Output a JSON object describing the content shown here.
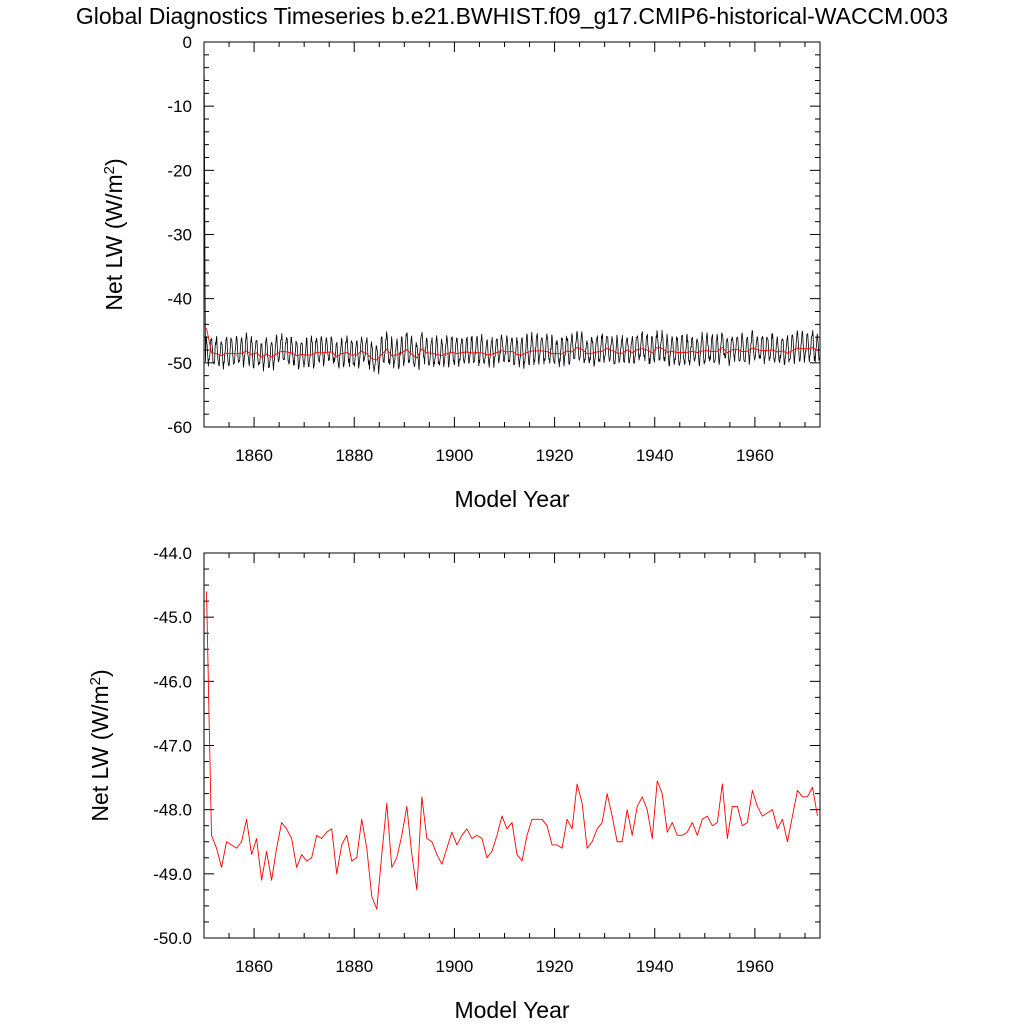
{
  "page": {
    "title": "Global Diagnostics Timeseries b.e21.BWHIST.f09_g17.CMIP6-historical-WACCM.003"
  },
  "colors": {
    "monthly_line": "#000000",
    "annual_line": "#ff0000",
    "axis": "#000000"
  },
  "chart_data": [
    {
      "type": "line",
      "name": "top-panel",
      "xlabel": "Model Year",
      "ylabel_main": "Net LW (W/m",
      "ylabel_sup": "2",
      "ylabel_close": ")",
      "xlim": [
        1850,
        1973
      ],
      "ylim": [
        -60,
        0
      ],
      "xticks": [
        1860,
        1880,
        1900,
        1920,
        1940,
        1960
      ],
      "xticklabels": [
        "1860",
        "1880",
        "1900",
        "1920",
        "1940",
        "1960"
      ],
      "yticks": [
        0,
        -10,
        -20,
        -30,
        -40,
        -50,
        -60
      ],
      "yticklabels": [
        "0",
        "-10",
        "-20",
        "-30",
        "-40",
        "-50",
        "-60"
      ],
      "series": [
        {
          "name": "monthly",
          "color": "#000000",
          "start_year": 1850.04,
          "step": 0.0833333,
          "first_values": [
            -5.0,
            -22.0,
            -38.0,
            -49.8
          ],
          "seasonal_pattern": [
            -49.6,
            -49.0,
            -48.2,
            -47.2,
            -46.5,
            -46.0,
            -46.2,
            -47.0,
            -48.3,
            -49.4,
            -50.0,
            -49.9
          ],
          "note_values": "first months spin up from ~0 W/m2, then seasonal cycle around the annual mean with amplitude about 4 W/m2"
        },
        {
          "name": "annual",
          "color": "#ff0000",
          "x": [
            1850.5,
            1851.5,
            1852.5,
            1853.5,
            1854.5,
            1855.5,
            1856.5,
            1857.5,
            1858.5,
            1859.5,
            1860.5,
            1861.5,
            1862.5,
            1863.5,
            1864.5,
            1865.5,
            1866.5,
            1867.5,
            1868.5,
            1869.5,
            1870.5,
            1871.5,
            1872.5,
            1873.5,
            1874.5,
            1875.5,
            1876.5,
            1877.5,
            1878.5,
            1879.5,
            1880.5,
            1881.5,
            1882.5,
            1883.5,
            1884.5,
            1885.5,
            1886.5,
            1887.5,
            1888.5,
            1889.5,
            1890.5,
            1891.5,
            1892.5,
            1893.5,
            1894.5,
            1895.5,
            1896.5,
            1897.5,
            1898.5,
            1899.5,
            1900.5,
            1901.5,
            1902.5,
            1903.5,
            1904.5,
            1905.5,
            1906.5,
            1907.5,
            1908.5,
            1909.5,
            1910.5,
            1911.5,
            1912.5,
            1913.5,
            1914.5,
            1915.5,
            1916.5,
            1917.5,
            1918.5,
            1919.5,
            1920.5,
            1921.5,
            1922.5,
            1923.5,
            1924.5,
            1925.5,
            1926.5,
            1927.5,
            1928.5,
            1929.5,
            1930.5,
            1931.5,
            1932.5,
            1933.5,
            1934.5,
            1935.5,
            1936.5,
            1937.5,
            1938.5,
            1939.5,
            1940.5,
            1941.5,
            1942.5,
            1943.5,
            1944.5,
            1945.5,
            1946.5,
            1947.5,
            1948.5,
            1949.5,
            1950.5,
            1951.5,
            1952.5,
            1953.5,
            1954.5,
            1955.5,
            1956.5,
            1957.5,
            1958.5,
            1959.5,
            1960.5,
            1961.5,
            1962.5,
            1963.5,
            1964.5,
            1965.5,
            1966.5,
            1967.5,
            1968.5,
            1969.5,
            1970.5,
            1971.5,
            1972.5
          ],
          "values": [
            -44.6,
            -48.4,
            -48.6,
            -48.9,
            -48.5,
            -48.55,
            -48.6,
            -48.5,
            -48.15,
            -48.7,
            -48.45,
            -49.1,
            -48.65,
            -49.1,
            -48.6,
            -48.2,
            -48.3,
            -48.45,
            -48.9,
            -48.7,
            -48.8,
            -48.75,
            -48.4,
            -48.45,
            -48.35,
            -48.3,
            -49.0,
            -48.55,
            -48.4,
            -48.8,
            -48.75,
            -48.15,
            -48.6,
            -49.35,
            -49.55,
            -48.7,
            -47.9,
            -48.9,
            -48.75,
            -48.4,
            -47.95,
            -48.7,
            -49.25,
            -47.8,
            -48.45,
            -48.5,
            -48.7,
            -48.85,
            -48.6,
            -48.35,
            -48.55,
            -48.4,
            -48.3,
            -48.45,
            -48.4,
            -48.45,
            -48.75,
            -48.65,
            -48.4,
            -48.1,
            -48.3,
            -48.2,
            -48.7,
            -48.8,
            -48.4,
            -48.15,
            -48.15,
            -48.15,
            -48.25,
            -48.55,
            -48.55,
            -48.6,
            -48.15,
            -48.3,
            -47.6,
            -47.9,
            -48.6,
            -48.5,
            -48.3,
            -48.2,
            -47.75,
            -48.1,
            -48.5,
            -48.5,
            -48.0,
            -48.4,
            -47.95,
            -47.8,
            -48.0,
            -48.45,
            -47.55,
            -47.75,
            -48.35,
            -48.2,
            -48.4,
            -48.4,
            -48.35,
            -48.2,
            -48.4,
            -48.15,
            -48.1,
            -48.25,
            -48.2,
            -47.6,
            -48.45,
            -47.95,
            -47.95,
            -48.25,
            -48.2,
            -47.7,
            -47.95,
            -48.1,
            -48.05,
            -48.0,
            -48.3,
            -48.15,
            -48.5,
            -48.1,
            -47.7,
            -47.8,
            -47.8,
            -47.65,
            -48.1
          ]
        }
      ]
    },
    {
      "type": "line",
      "name": "bottom-panel",
      "xlabel": "Model Year",
      "ylabel_main": "Net LW (W/m",
      "ylabel_sup": "2",
      "ylabel_close": ")",
      "xlim": [
        1850,
        1973
      ],
      "ylim": [
        -50.0,
        -44.0
      ],
      "xticks": [
        1860,
        1880,
        1900,
        1920,
        1940,
        1960
      ],
      "xticklabels": [
        "1860",
        "1880",
        "1900",
        "1920",
        "1940",
        "1960"
      ],
      "yticks": [
        -44,
        -45,
        -46,
        -47,
        -48,
        -49,
        -50
      ],
      "yticklabels": [
        "-44.0",
        "-45.0",
        "-46.0",
        "-47.0",
        "-48.0",
        "-49.0",
        "-50.0"
      ],
      "series_ref": "annual"
    }
  ]
}
